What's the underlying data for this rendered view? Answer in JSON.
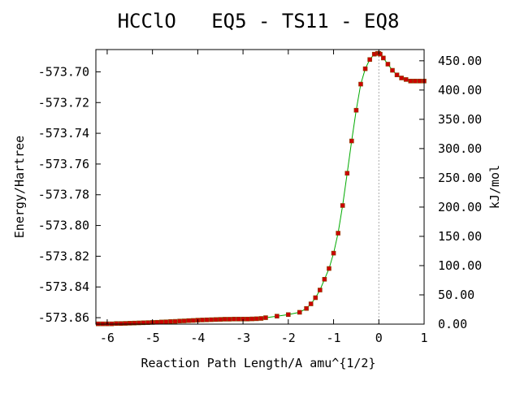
{
  "chart_data": {
    "type": "line",
    "title": "HCClO   EQ5 - TS11 - EQ8",
    "xlabel": "Reaction Path Length/A amu^{1/2}",
    "ylabel": "Energy/Hartree",
    "y2label": "kJ/mol",
    "xlim": [
      -6.25,
      1.0
    ],
    "ylim": [
      -573.8642,
      -573.6855
    ],
    "y2lim": [
      0.0,
      469.2
    ],
    "x_ticks": [
      "-6",
      "-5",
      "-4",
      "-3",
      "-2",
      "-1",
      "0",
      "1"
    ],
    "y_ticks": [
      "-573.70",
      "-573.72",
      "-573.74",
      "-573.76",
      "-573.78",
      "-573.80",
      "-573.82",
      "-573.84",
      "-573.86"
    ],
    "y2_ticks": [
      "0.00",
      "50.00",
      "100.00",
      "150.00",
      "200.00",
      "250.00",
      "300.00",
      "350.00",
      "400.00",
      "450.00"
    ],
    "ts_x": 0.0,
    "colors": {
      "line": "#00aa00",
      "marker": "#cc0000",
      "marker_edge": "#884400",
      "ts_line": "#aaaaaa"
    },
    "series": [
      {
        "x": [
          -6.2,
          -6.1,
          -6.0,
          -5.9,
          -5.8,
          -5.7,
          -5.6,
          -5.5,
          -5.4,
          -5.3,
          -5.2,
          -5.1,
          -5.0,
          -4.9,
          -4.8,
          -4.7,
          -4.6,
          -4.5,
          -4.4,
          -4.3,
          -4.2,
          -4.1,
          -4.0,
          -3.9,
          -3.8,
          -3.7,
          -3.6,
          -3.5,
          -3.4,
          -3.3,
          -3.2,
          -3.1,
          -3.0,
          -2.9,
          -2.8,
          -2.7,
          -2.6,
          -2.5,
          -2.25,
          -2.0,
          -1.75,
          -1.6,
          -1.5,
          -1.4,
          -1.3,
          -1.2,
          -1.1,
          -1.0,
          -0.9,
          -0.8,
          -0.7,
          -0.6,
          -0.5,
          -0.4,
          -0.3,
          -0.2,
          -0.1,
          -0.03,
          0.0,
          0.03,
          0.1,
          0.2,
          0.3,
          0.4,
          0.5,
          0.6,
          0.7,
          0.8,
          0.9,
          1.0
        ],
        "y": [
          -573.864,
          -573.864,
          -573.864,
          -573.864,
          -573.8638,
          -573.8638,
          -573.8637,
          -573.8636,
          -573.8635,
          -573.8634,
          -573.8633,
          -573.8632,
          -573.8631,
          -573.863,
          -573.8628,
          -573.8627,
          -573.8625,
          -573.8624,
          -573.8622,
          -573.8621,
          -573.8619,
          -573.8618,
          -573.8616,
          -573.8615,
          -573.8614,
          -573.8613,
          -573.8612,
          -573.8611,
          -573.861,
          -573.861,
          -573.8609,
          -573.8609,
          -573.8609,
          -573.8609,
          -573.8608,
          -573.8607,
          -573.8605,
          -573.86,
          -573.859,
          -573.858,
          -573.8565,
          -573.854,
          -573.851,
          -573.847,
          -573.842,
          -573.835,
          -573.828,
          -573.818,
          -573.805,
          -573.787,
          -573.766,
          -573.745,
          -573.725,
          -573.708,
          -573.698,
          -573.692,
          -573.6885,
          -573.688,
          -573.688,
          -573.6885,
          -573.691,
          -573.695,
          -573.699,
          -573.702,
          -573.704,
          -573.705,
          -573.706,
          -573.706,
          -573.706,
          -573.706
        ]
      }
    ]
  }
}
